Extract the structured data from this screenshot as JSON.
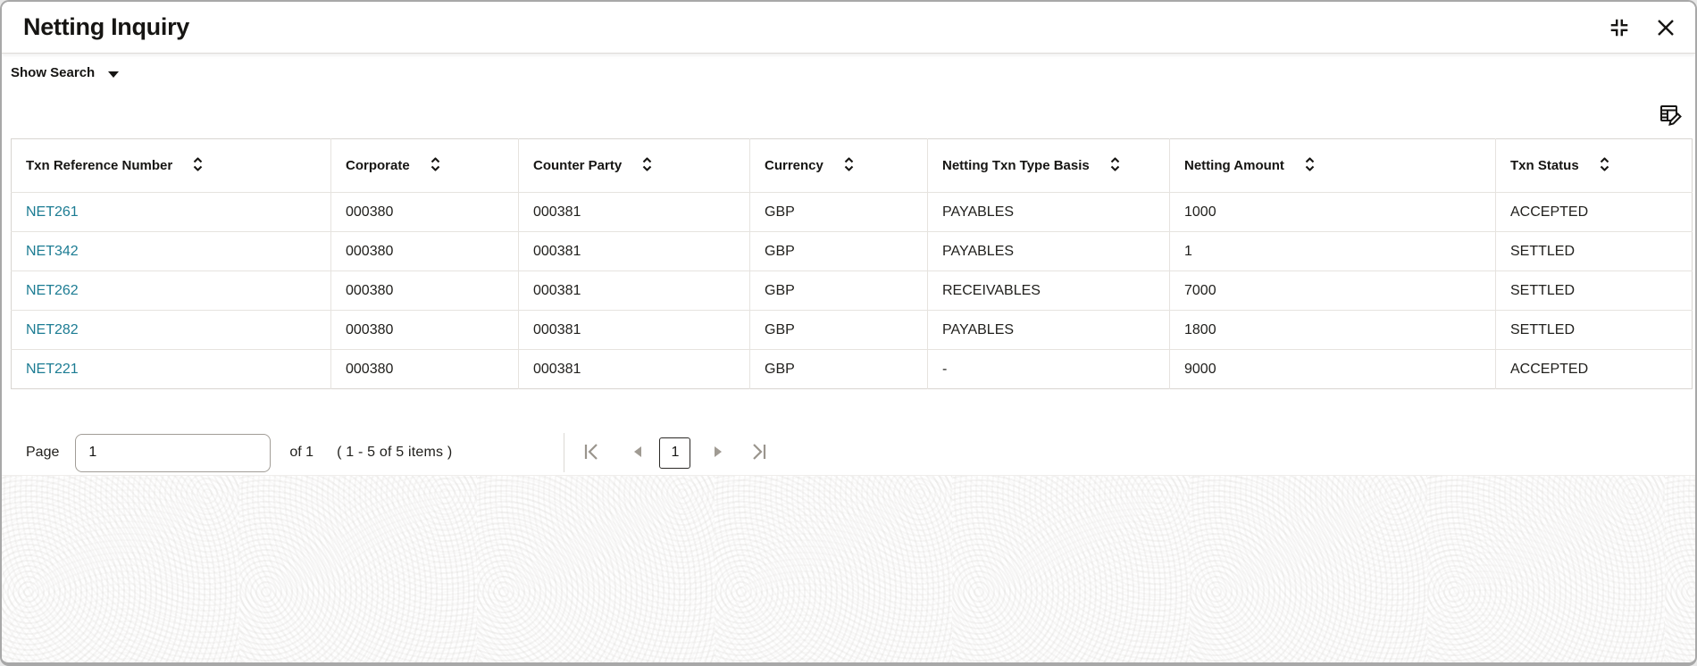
{
  "dialog": {
    "title": "Netting Inquiry"
  },
  "toolbar": {
    "show_search_label": "Show Search"
  },
  "icons": {
    "collapse": "collapse-icon",
    "close": "close-icon",
    "show_search_caret": "chevron-down-icon",
    "edit_table": "edit-table-icon",
    "sort": "sort-up-down-icon",
    "first_page": "first-page-icon",
    "previous_page": "previous-page-icon",
    "next_page": "next-page-icon",
    "last_page": "last-page-icon"
  },
  "table": {
    "columns": [
      {
        "key": "txn-reference-number",
        "label": "Txn Reference Number"
      },
      {
        "key": "corporate",
        "label": "Corporate"
      },
      {
        "key": "counter-party",
        "label": "Counter Party"
      },
      {
        "key": "currency",
        "label": "Currency"
      },
      {
        "key": "netting-txn-type-basis",
        "label": "Netting Txn Type Basis"
      },
      {
        "key": "netting-amount",
        "label": "Netting Amount"
      },
      {
        "key": "txn-status",
        "label": "Txn Status"
      }
    ],
    "rows": [
      [
        "NET261",
        "000380",
        "000381",
        "GBP",
        "PAYABLES",
        "1000",
        "ACCEPTED"
      ],
      [
        "NET342",
        "000380",
        "000381",
        "GBP",
        "PAYABLES",
        "1",
        "SETTLED"
      ],
      [
        "NET262",
        "000380",
        "000381",
        "GBP",
        "RECEIVABLES",
        "7000",
        "SETTLED"
      ],
      [
        "NET282",
        "000380",
        "000381",
        "GBP",
        "PAYABLES",
        "1800",
        "SETTLED"
      ],
      [
        "NET221",
        "000380",
        "000381",
        "GBP",
        "-",
        "9000",
        "ACCEPTED"
      ]
    ]
  },
  "pagination": {
    "page_label": "Page",
    "page_input_value": "1",
    "of_label": "of 1",
    "items_summary": "( 1 - 5 of 5 items )",
    "current_page": "1"
  },
  "colors": {
    "link": "#1c7c93"
  }
}
